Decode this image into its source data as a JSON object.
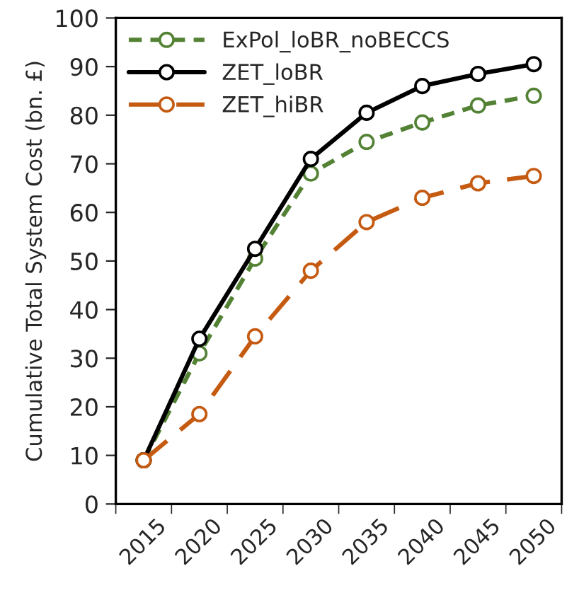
{
  "chart_data": {
    "type": "line",
    "ylabel": "Cumulative Total System Cost (bn. £)",
    "categories": [
      "2015",
      "2020",
      "2025",
      "2030",
      "2035",
      "2040",
      "2045",
      "2050"
    ],
    "series": [
      {
        "name": "ExPol_loBR_noBECCS",
        "color": "#548235",
        "line_style": "dotted",
        "values": [
          9,
          31,
          50.5,
          68,
          74.5,
          78.5,
          82,
          84
        ]
      },
      {
        "name": "ZET_loBR",
        "color": "#000000",
        "line_style": "solid",
        "values": [
          9,
          34,
          52.5,
          71,
          80.5,
          86,
          88.5,
          90.5
        ]
      },
      {
        "name": "ZET_hiBR",
        "color": "#c55a11",
        "line_style": "dashed",
        "values": [
          9,
          18.5,
          34.5,
          48,
          58,
          63,
          66,
          67.5
        ]
      }
    ],
    "ylim": [
      0,
      100
    ],
    "yticks": [
      0,
      10,
      20,
      30,
      40,
      50,
      60,
      70,
      80,
      90,
      100
    ],
    "marker": "circle",
    "grid": false,
    "legend": "top left"
  }
}
